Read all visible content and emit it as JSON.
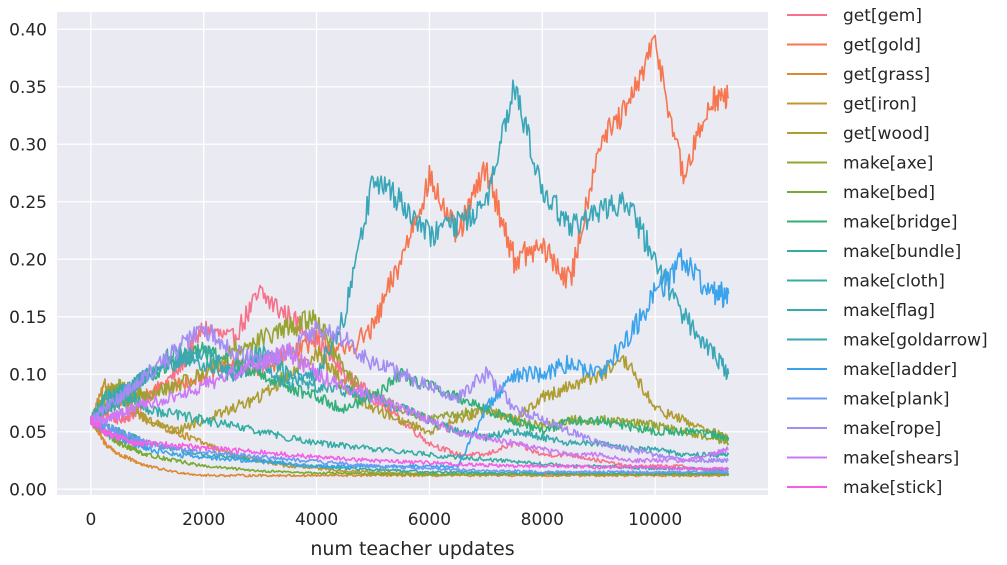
{
  "chart_data": {
    "type": "line",
    "title": "",
    "xlabel": "num teacher updates",
    "ylabel": "",
    "xlim": [
      -600,
      12000
    ],
    "ylim": [
      -0.005,
      0.415
    ],
    "xticks": [
      0,
      2000,
      4000,
      6000,
      8000,
      10000
    ],
    "xtick_labels": [
      "0",
      "2000",
      "4000",
      "6000",
      "8000",
      "10000"
    ],
    "yticks": [
      0.0,
      0.05,
      0.1,
      0.15,
      0.2,
      0.25,
      0.3,
      0.35,
      0.4
    ],
    "ytick_labels": [
      "0.00",
      "0.05",
      "0.10",
      "0.15",
      "0.20",
      "0.25",
      "0.30",
      "0.35",
      "0.40"
    ],
    "grid": true,
    "background": "#eaeaf2",
    "legend_position": "outside-right",
    "x": [
      0,
      250,
      500,
      750,
      1000,
      1500,
      2000,
      2500,
      3000,
      3500,
      4000,
      4500,
      5000,
      5500,
      6000,
      6500,
      7000,
      7500,
      8000,
      8500,
      9000,
      9500,
      10000,
      10500,
      11000,
      11300
    ],
    "series": [
      {
        "name": "get[gem]",
        "color": "#f77189",
        "values": [
          0.06,
          0.065,
          0.06,
          0.065,
          0.08,
          0.1,
          0.14,
          0.13,
          0.17,
          0.15,
          0.13,
          0.1,
          0.08,
          0.06,
          0.04,
          0.03,
          0.03,
          0.04,
          0.03,
          0.03,
          0.025,
          0.02,
          0.02,
          0.02,
          0.015,
          0.015
        ]
      },
      {
        "name": "get[gold]",
        "color": "#f7754f",
        "values": [
          0.06,
          0.07,
          0.075,
          0.08,
          0.085,
          0.09,
          0.1,
          0.11,
          0.1,
          0.12,
          0.13,
          0.12,
          0.14,
          0.2,
          0.27,
          0.22,
          0.28,
          0.2,
          0.21,
          0.18,
          0.3,
          0.33,
          0.39,
          0.27,
          0.34,
          0.34
        ]
      },
      {
        "name": "get[grass]",
        "color": "#dc8932",
        "values": [
          0.06,
          0.04,
          0.03,
          0.025,
          0.02,
          0.015,
          0.012,
          0.012,
          0.012,
          0.012,
          0.012,
          0.012,
          0.012,
          0.012,
          0.012,
          0.012,
          0.012,
          0.012,
          0.012,
          0.012,
          0.012,
          0.012,
          0.012,
          0.012,
          0.012,
          0.012
        ]
      },
      {
        "name": "get[iron]",
        "color": "#c39532",
        "values": [
          0.06,
          0.09,
          0.085,
          0.07,
          0.06,
          0.05,
          0.04,
          0.03,
          0.025,
          0.02,
          0.018,
          0.016,
          0.015,
          0.014,
          0.013,
          0.013,
          0.013,
          0.013,
          0.013,
          0.013,
          0.013,
          0.013,
          0.013,
          0.013,
          0.013,
          0.013
        ]
      },
      {
        "name": "get[wood]",
        "color": "#ae9d31",
        "values": [
          0.06,
          0.07,
          0.08,
          0.07,
          0.06,
          0.05,
          0.06,
          0.07,
          0.08,
          0.1,
          0.12,
          0.09,
          0.07,
          0.06,
          0.05,
          0.06,
          0.07,
          0.06,
          0.08,
          0.09,
          0.1,
          0.11,
          0.07,
          0.06,
          0.05,
          0.045
        ]
      },
      {
        "name": "make[axe]",
        "color": "#97a431",
        "values": [
          0.06,
          0.08,
          0.09,
          0.085,
          0.08,
          0.09,
          0.1,
          0.12,
          0.13,
          0.14,
          0.15,
          0.1,
          0.08,
          0.07,
          0.06,
          0.065,
          0.07,
          0.06,
          0.055,
          0.06,
          0.06,
          0.06,
          0.055,
          0.05,
          0.045,
          0.04
        ]
      },
      {
        "name": "make[bed]",
        "color": "#77ab31",
        "values": [
          0.06,
          0.05,
          0.04,
          0.035,
          0.03,
          0.025,
          0.02,
          0.018,
          0.016,
          0.015,
          0.014,
          0.014,
          0.013,
          0.013,
          0.013,
          0.013,
          0.013,
          0.013,
          0.013,
          0.013,
          0.013,
          0.013,
          0.013,
          0.013,
          0.013,
          0.013
        ]
      },
      {
        "name": "make[bridge]",
        "color": "#33b07a",
        "values": [
          0.06,
          0.07,
          0.08,
          0.09,
          0.1,
          0.11,
          0.12,
          0.11,
          0.1,
          0.09,
          0.08,
          0.07,
          0.08,
          0.1,
          0.09,
          0.08,
          0.07,
          0.06,
          0.05,
          0.06,
          0.06,
          0.055,
          0.05,
          0.05,
          0.048,
          0.045
        ]
      },
      {
        "name": "make[bundle]",
        "color": "#35ad9c",
        "values": [
          0.06,
          0.055,
          0.05,
          0.045,
          0.04,
          0.035,
          0.03,
          0.028,
          0.025,
          0.022,
          0.02,
          0.018,
          0.017,
          0.016,
          0.015,
          0.015,
          0.014,
          0.014,
          0.014,
          0.014,
          0.014,
          0.014,
          0.014,
          0.014,
          0.014,
          0.014
        ]
      },
      {
        "name": "make[cloth]",
        "color": "#36ada4",
        "values": [
          0.06,
          0.07,
          0.075,
          0.08,
          0.07,
          0.065,
          0.06,
          0.055,
          0.05,
          0.045,
          0.04,
          0.038,
          0.035,
          0.033,
          0.03,
          0.028,
          0.026,
          0.024,
          0.022,
          0.02,
          0.02,
          0.019,
          0.018,
          0.018,
          0.017,
          0.017
        ]
      },
      {
        "name": "make[flag]",
        "color": "#38aaac",
        "values": [
          0.06,
          0.08,
          0.085,
          0.09,
          0.1,
          0.12,
          0.11,
          0.1,
          0.12,
          0.1,
          0.09,
          0.085,
          0.08,
          0.07,
          0.06,
          0.05,
          0.045,
          0.05,
          0.045,
          0.04,
          0.04,
          0.035,
          0.035,
          0.03,
          0.03,
          0.03
        ]
      },
      {
        "name": "make[goldarrow]",
        "color": "#39a7b7",
        "values": [
          0.06,
          0.07,
          0.08,
          0.09,
          0.1,
          0.11,
          0.12,
          0.1,
          0.11,
          0.09,
          0.1,
          0.15,
          0.27,
          0.25,
          0.22,
          0.23,
          0.25,
          0.35,
          0.26,
          0.23,
          0.24,
          0.25,
          0.2,
          0.15,
          0.12,
          0.1
        ]
      },
      {
        "name": "make[ladder]",
        "color": "#3ba3ec",
        "values": [
          0.06,
          0.05,
          0.045,
          0.04,
          0.035,
          0.03,
          0.028,
          0.026,
          0.024,
          0.022,
          0.02,
          0.02,
          0.02,
          0.02,
          0.02,
          0.02,
          0.07,
          0.1,
          0.1,
          0.11,
          0.1,
          0.13,
          0.17,
          0.2,
          0.17,
          0.17
        ]
      },
      {
        "name": "make[plank]",
        "color": "#6e9af4",
        "values": [
          0.06,
          0.055,
          0.05,
          0.045,
          0.04,
          0.035,
          0.032,
          0.03,
          0.028,
          0.026,
          0.024,
          0.022,
          0.02,
          0.019,
          0.018,
          0.017,
          0.016,
          0.016,
          0.015,
          0.015,
          0.015,
          0.015,
          0.015,
          0.015,
          0.015,
          0.015
        ]
      },
      {
        "name": "make[rope]",
        "color": "#a48cf4",
        "values": [
          0.06,
          0.07,
          0.08,
          0.09,
          0.1,
          0.12,
          0.14,
          0.12,
          0.11,
          0.12,
          0.14,
          0.13,
          0.11,
          0.1,
          0.09,
          0.08,
          0.1,
          0.07,
          0.06,
          0.05,
          0.04,
          0.035,
          0.03,
          0.025,
          0.025,
          0.025
        ]
      },
      {
        "name": "make[shears]",
        "color": "#cc7af4",
        "values": [
          0.06,
          0.06,
          0.065,
          0.07,
          0.075,
          0.08,
          0.09,
          0.1,
          0.11,
          0.12,
          0.1,
          0.09,
          0.08,
          0.07,
          0.06,
          0.05,
          0.045,
          0.04,
          0.035,
          0.03,
          0.03,
          0.025,
          0.025,
          0.025,
          0.03,
          0.035
        ]
      },
      {
        "name": "make[stick]",
        "color": "#f45fe5",
        "values": [
          0.06,
          0.05,
          0.045,
          0.04,
          0.04,
          0.038,
          0.036,
          0.034,
          0.032,
          0.03,
          0.028,
          0.026,
          0.025,
          0.024,
          0.023,
          0.022,
          0.021,
          0.02,
          0.02,
          0.02,
          0.019,
          0.019,
          0.019,
          0.018,
          0.018,
          0.018
        ]
      }
    ]
  }
}
